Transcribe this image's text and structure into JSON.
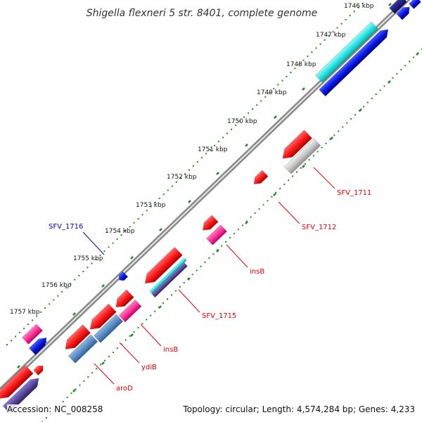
{
  "title": "Shigella flexneri 5 str. 8401, complete genome",
  "accession_text": "Accession: NC_008258",
  "summary_text": "Topology: circular; Length: 4,574,284 bp; Genes: 4,233",
  "ticks": [
    "1746 kbp",
    "1747 kbp",
    "1748 kbp",
    "1749 kbp",
    "1750 kbp",
    "1751 kbp",
    "1752 kbp",
    "1753 kbp",
    "1754 kbp",
    "1755 kbp",
    "1756 kbp",
    "1757 kbp"
  ],
  "gene_labels": [
    {
      "text": "SFV_1711",
      "color": "#e8000b"
    },
    {
      "text": "SFV_1712",
      "color": "#e8000b"
    },
    {
      "text": "insB",
      "color": "#e8000b"
    },
    {
      "text": "SFV_1715",
      "color": "#e8000b"
    },
    {
      "text": "insB",
      "color": "#e8000b"
    },
    {
      "text": "ydiB",
      "color": "#e8000b"
    },
    {
      "text": "aroD",
      "color": "#e8000b"
    },
    {
      "text": "SFV_1716",
      "color": "#0000cc"
    }
  ],
  "colors": {
    "cds_red": "#ff1a1a",
    "gene_blue": "#0a1ae8",
    "pink": "#ff3399",
    "steel_blue": "#5b8fc8",
    "cyan": "#29e6e6",
    "grey": "#c8c8c8",
    "purple": "#5a4a9c",
    "tick_green": "#1f8a1f"
  }
}
